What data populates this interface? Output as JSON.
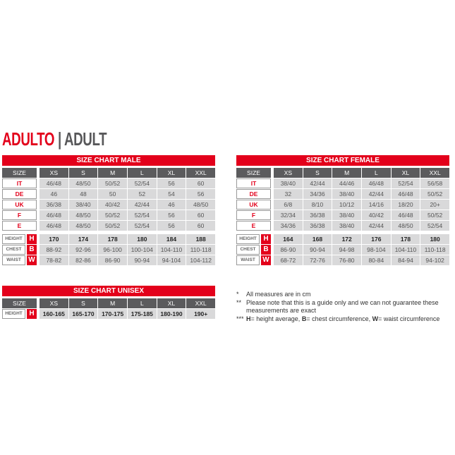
{
  "heading": {
    "primary": "ADULTO",
    "separator": "|",
    "secondary": "ADULT"
  },
  "sizes": [
    "XS",
    "S",
    "M",
    "L",
    "XL",
    "XXL"
  ],
  "size_label": "SIZE",
  "tables": [
    {
      "id": "male",
      "title": "SIZE CHART MALE",
      "regions": [
        {
          "label": "IT",
          "values": [
            "46/48",
            "48/50",
            "50/52",
            "52/54",
            "56",
            "60"
          ]
        },
        {
          "label": "DE",
          "values": [
            "46",
            "48",
            "50",
            "52",
            "54",
            "56"
          ]
        },
        {
          "label": "UK",
          "values": [
            "36/38",
            "38/40",
            "40/42",
            "42/44",
            "46",
            "48/50"
          ]
        },
        {
          "label": "F",
          "values": [
            "46/48",
            "48/50",
            "50/52",
            "52/54",
            "56",
            "60"
          ]
        },
        {
          "label": "E",
          "values": [
            "46/48",
            "48/50",
            "50/52",
            "52/54",
            "56",
            "60"
          ]
        }
      ],
      "measures": [
        {
          "label": "HEIGHT",
          "letter": "H",
          "values": [
            "170",
            "174",
            "178",
            "180",
            "184",
            "188"
          ]
        },
        {
          "label": "CHEST",
          "letter": "B",
          "values": [
            "88-92",
            "92-96",
            "96-100",
            "100-104",
            "104-110",
            "110-118"
          ]
        },
        {
          "label": "WAIST",
          "letter": "W",
          "values": [
            "78-82",
            "82-86",
            "86-90",
            "90-94",
            "94-104",
            "104-112"
          ]
        }
      ]
    },
    {
      "id": "female",
      "title": "SIZE CHART FEMALE",
      "regions": [
        {
          "label": "IT",
          "values": [
            "38/40",
            "42/44",
            "44/46",
            "46/48",
            "52/54",
            "56/58"
          ]
        },
        {
          "label": "DE",
          "values": [
            "32",
            "34/36",
            "38/40",
            "42/44",
            "46/48",
            "50/52"
          ]
        },
        {
          "label": "UK",
          "values": [
            "6/8",
            "8/10",
            "10/12",
            "14/16",
            "18/20",
            "20+"
          ]
        },
        {
          "label": "F",
          "values": [
            "32/34",
            "36/38",
            "38/40",
            "40/42",
            "46/48",
            "50/52"
          ]
        },
        {
          "label": "E",
          "values": [
            "34/36",
            "36/38",
            "38/40",
            "42/44",
            "48/50",
            "52/54"
          ]
        }
      ],
      "measures": [
        {
          "label": "HEIGHT",
          "letter": "H",
          "values": [
            "164",
            "168",
            "172",
            "176",
            "178",
            "180"
          ]
        },
        {
          "label": "CHEST",
          "letter": "B",
          "values": [
            "86-90",
            "90-94",
            "94-98",
            "98-104",
            "104-110",
            "110-118"
          ]
        },
        {
          "label": "WAIST",
          "letter": "W",
          "values": [
            "68-72",
            "72-76",
            "76-80",
            "80-84",
            "84-94",
            "94-102"
          ]
        }
      ]
    },
    {
      "id": "unisex",
      "title": "SIZE CHART UNISEX",
      "regions": [],
      "measures": [
        {
          "label": "HEIGHT",
          "letter": "H",
          "values": [
            "160-165",
            "165-170",
            "170-175",
            "175-185",
            "180-190",
            "190+"
          ]
        }
      ]
    }
  ],
  "notes": [
    {
      "mark": "*",
      "text": "All measures are in cm"
    },
    {
      "mark": "**",
      "text": "Please note that this is a guide only and we can not guarantee these measurements are exact"
    },
    {
      "mark": "***",
      "parts": [
        {
          "b": "H",
          "t": "= height average, "
        },
        {
          "b": "B",
          "t": "= chest circumference, "
        },
        {
          "b": "W",
          "t": "= waist circumference"
        }
      ]
    }
  ],
  "colors": {
    "accent": "#e3001b",
    "header": "#5b5b5d",
    "cell": "#d9d9da"
  }
}
